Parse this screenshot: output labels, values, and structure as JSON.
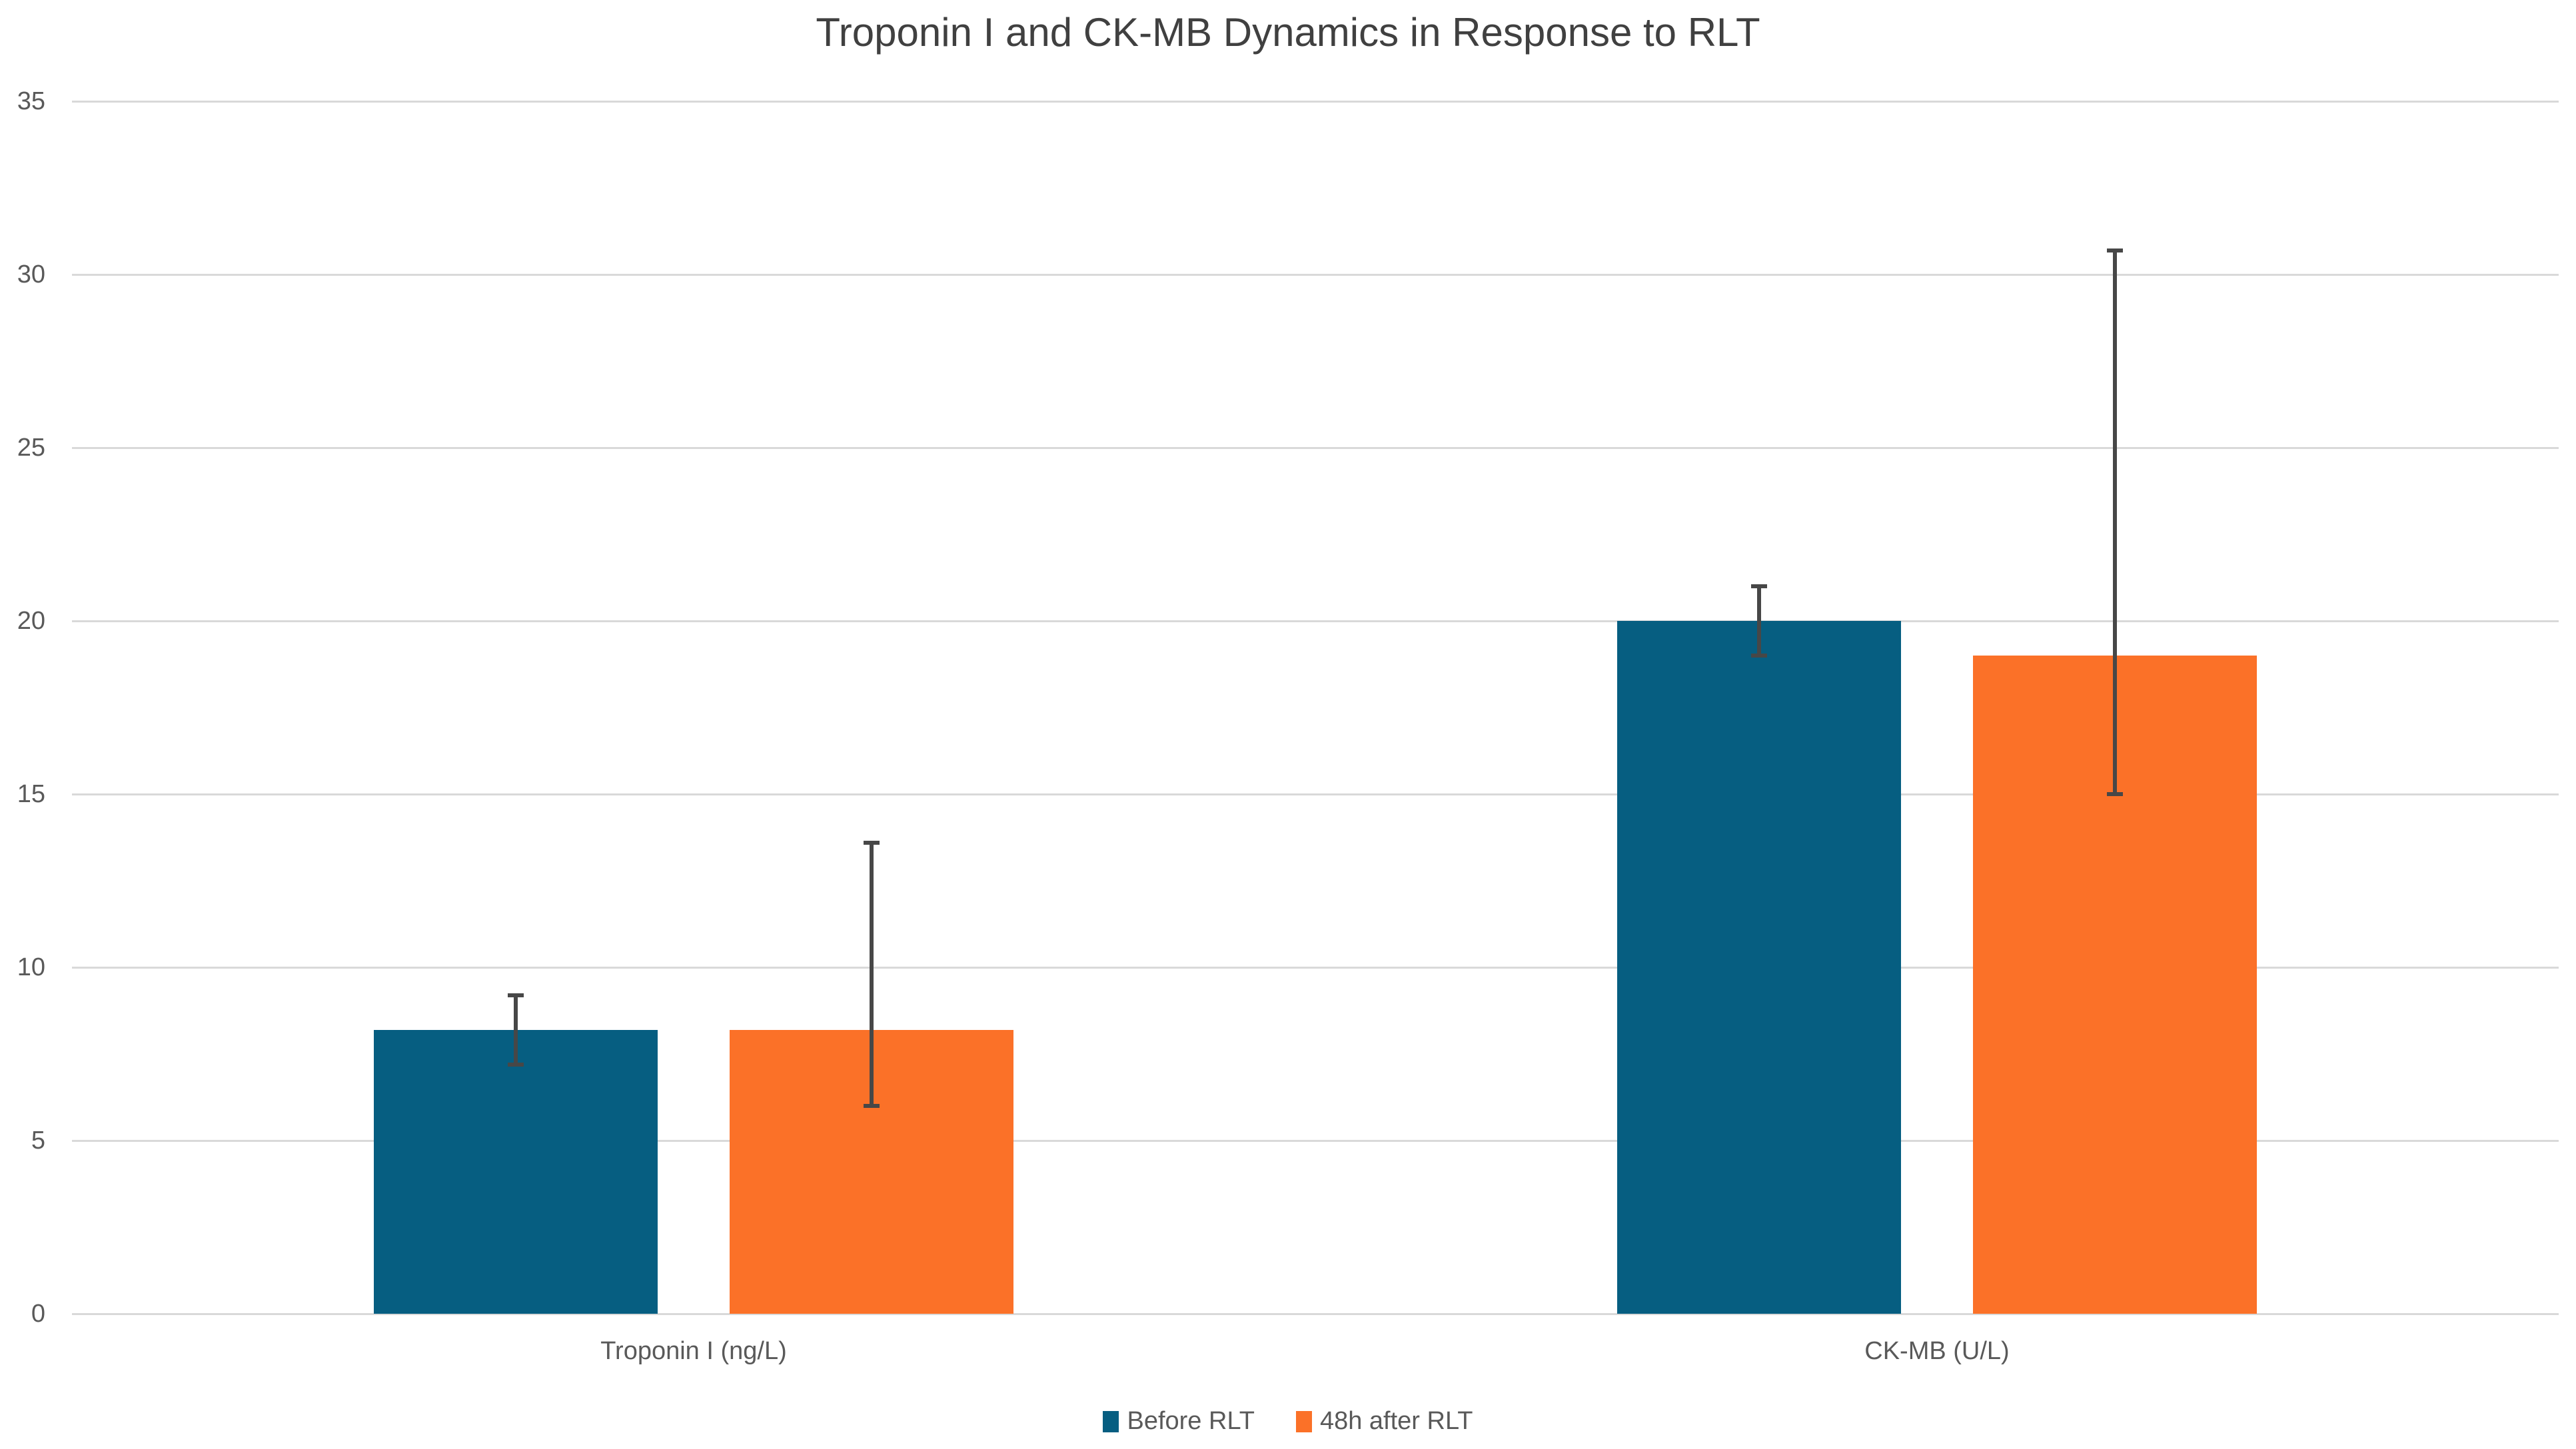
{
  "title": "Troponin I and CK-MB Dynamics in Response to RLT",
  "colors": {
    "series_before": "#065E81",
    "series_after": "#FB7128",
    "gridline": "#D9D9D9",
    "error_bar": "#474747",
    "tick_text": "#595959",
    "title_text": "#404040",
    "background": "#FFFFFF"
  },
  "legend": {
    "position": "bottom",
    "items": [
      {
        "label": "Before RLT",
        "color": "#065E81"
      },
      {
        "label": "48h after RLT",
        "color": "#FB7128"
      }
    ]
  },
  "y_axis": {
    "min": 0,
    "max": 35,
    "step": 5,
    "tick_labels": [
      "0",
      "5",
      "10",
      "15",
      "20",
      "25",
      "30",
      "35"
    ]
  },
  "chart_data": {
    "type": "bar",
    "title": "Troponin I and CK-MB Dynamics in Response to RLT",
    "categories": [
      "Troponin I (ng/L)",
      "CK-MB (U/L)"
    ],
    "series": [
      {
        "name": "Before RLT",
        "color": "#065E81",
        "values": [
          8.2,
          20
        ],
        "error_low": [
          7.2,
          19
        ],
        "error_high": [
          9.2,
          21
        ]
      },
      {
        "name": "48h after RLT",
        "color": "#FB7128",
        "values": [
          8.2,
          19
        ],
        "error_low": [
          6.0,
          15
        ],
        "error_high": [
          13.6,
          30.7
        ]
      }
    ],
    "xlabel": "",
    "ylabel": "",
    "ylim": [
      0,
      35
    ],
    "yticks": [
      0,
      5,
      10,
      15,
      20,
      25,
      30,
      35
    ],
    "grid": true,
    "error_bars": true,
    "legend_position": "bottom"
  }
}
